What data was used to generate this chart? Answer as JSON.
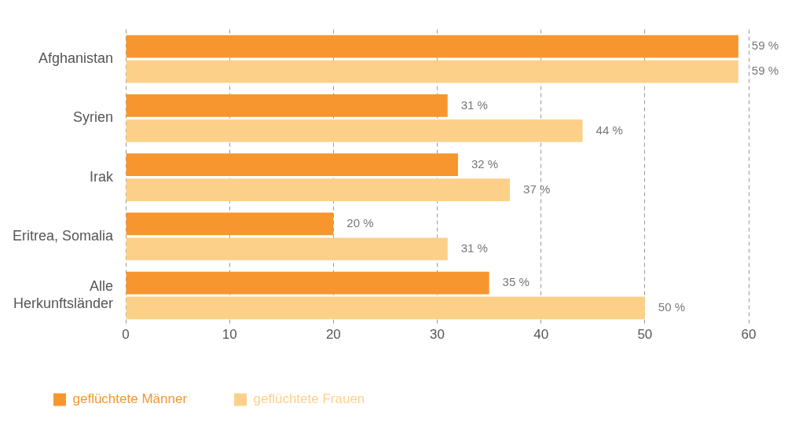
{
  "chart_data": {
    "type": "bar",
    "orientation": "horizontal",
    "categories": [
      "Afghanistan",
      "Syrien",
      "Irak",
      "Eritrea, Somalia",
      "Alle Herkunftsländer"
    ],
    "series": [
      {
        "name": "geflüchtete Männer",
        "color": "#f7962e",
        "values": [
          59,
          31,
          32,
          20,
          35
        ],
        "value_labels": [
          "59 %",
          "31 %",
          "32 %",
          "20 %",
          "35 %"
        ]
      },
      {
        "name": "geflüchtete Frauen",
        "color": "#fdd08a",
        "values": [
          59,
          44,
          37,
          31,
          50
        ],
        "value_labels": [
          "59 %",
          "44 %",
          "37 %",
          "31 %",
          "50 %"
        ]
      }
    ],
    "xlim": [
      0,
      60
    ],
    "xticks": [
      0,
      10,
      20,
      30,
      40,
      50,
      60
    ],
    "grid": "x",
    "legend": "bottom"
  }
}
